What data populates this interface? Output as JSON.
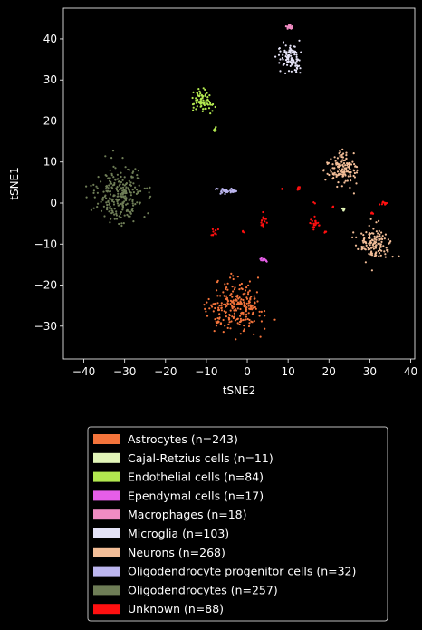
{
  "chart_data": {
    "type": "scatter",
    "title": "",
    "xlabel": "tSNE2",
    "ylabel": "tSNE1",
    "xlim": [
      -45,
      41
    ],
    "ylim": [
      -38,
      47.5
    ],
    "xticks": [
      -40,
      -30,
      -20,
      -10,
      0,
      10,
      20,
      30,
      40
    ],
    "yticks": [
      -30,
      -20,
      -10,
      0,
      10,
      20,
      30,
      40
    ],
    "grid": false,
    "legend_position": "below",
    "series": [
      {
        "name": "Astrocytes (n=243)",
        "color": "#f4743b",
        "count": 243,
        "clusters": [
          {
            "cx": -3,
            "cy": -25.5,
            "sx": 10,
            "sy": 8.5,
            "n": 243
          }
        ]
      },
      {
        "name": "Cajal-Retzius cells (n=11)",
        "color": "#e2f5b8",
        "count": 11,
        "clusters": [
          {
            "cx": 23.5,
            "cy": -1.5,
            "sx": 0.6,
            "sy": 0.5,
            "n": 11
          }
        ]
      },
      {
        "name": "Endothelial cells (n=84)",
        "color": "#b2e84f",
        "count": 84,
        "clusters": [
          {
            "cx": -11,
            "cy": 25,
            "sx": 3.5,
            "sy": 3.5,
            "n": 78
          },
          {
            "cx": -8,
            "cy": 18.2,
            "sx": 0.5,
            "sy": 0.9,
            "n": 6
          }
        ]
      },
      {
        "name": "Ependymal cells (n=17)",
        "color": "#e65ee8",
        "count": 17,
        "clusters": [
          {
            "cx": 4,
            "cy": -13.8,
            "sx": 1.2,
            "sy": 0.6,
            "n": 17
          }
        ]
      },
      {
        "name": "Macrophages (n=18)",
        "color": "#f08cc2",
        "count": 18,
        "clusters": [
          {
            "cx": 10.5,
            "cy": 43,
            "sx": 1.3,
            "sy": 0.8,
            "n": 18
          }
        ]
      },
      {
        "name": "Microglia (n=103)",
        "color": "#e4e2f6",
        "count": 103,
        "clusters": [
          {
            "cx": 10.5,
            "cy": 35.5,
            "sx": 4.5,
            "sy": 4.5,
            "n": 103
          }
        ]
      },
      {
        "name": "Neurons (n=268)",
        "color": "#f3be98",
        "count": 268,
        "clusters": [
          {
            "cx": 23.5,
            "cy": 8.5,
            "sx": 5,
            "sy": 5.5,
            "n": 135
          },
          {
            "cx": 31,
            "cy": -10,
            "sx": 5.5,
            "sy": 6,
            "n": 133
          }
        ]
      },
      {
        "name": "Oligodendrocyte progenitor cells (n=32)",
        "color": "#bcb6ef",
        "count": 32,
        "clusters": [
          {
            "cx": -5,
            "cy": 3,
            "sx": 3.5,
            "sy": 1.2,
            "n": 32
          }
        ]
      },
      {
        "name": "Oligodendrocytes (n=257)",
        "color": "#6e7d56",
        "count": 257,
        "clusters": [
          {
            "cx": -31,
            "cy": 2,
            "sx": 9,
            "sy": 10,
            "n": 257
          }
        ]
      },
      {
        "name": "Unknown (n=88)",
        "color": "#ff1010",
        "count": 88,
        "clusters": [
          {
            "cx": 4,
            "cy": -4.5,
            "sx": 1,
            "sy": 3,
            "n": 15
          },
          {
            "cx": -8,
            "cy": -7.5,
            "sx": 1,
            "sy": 2,
            "n": 10
          },
          {
            "cx": 12.5,
            "cy": 3.5,
            "sx": 1.2,
            "sy": 0.6,
            "n": 8
          },
          {
            "cx": 8.5,
            "cy": 3.5,
            "sx": 0.3,
            "sy": 0.3,
            "n": 3
          },
          {
            "cx": 16.5,
            "cy": -5,
            "sx": 2,
            "sy": 1.5,
            "n": 20
          },
          {
            "cx": 19,
            "cy": -7,
            "sx": 0.4,
            "sy": 0.4,
            "n": 4
          },
          {
            "cx": 33.5,
            "cy": 0,
            "sx": 1.2,
            "sy": 0.8,
            "n": 12
          },
          {
            "cx": 30.5,
            "cy": -2.5,
            "sx": 0.6,
            "sy": 0.4,
            "n": 6
          },
          {
            "cx": -1,
            "cy": -7,
            "sx": 0.3,
            "sy": 0.3,
            "n": 3
          },
          {
            "cx": 16.5,
            "cy": 0,
            "sx": 0.3,
            "sy": 0.3,
            "n": 3
          },
          {
            "cx": 21,
            "cy": -1,
            "sx": 0.3,
            "sy": 0.3,
            "n": 4
          }
        ]
      }
    ]
  }
}
